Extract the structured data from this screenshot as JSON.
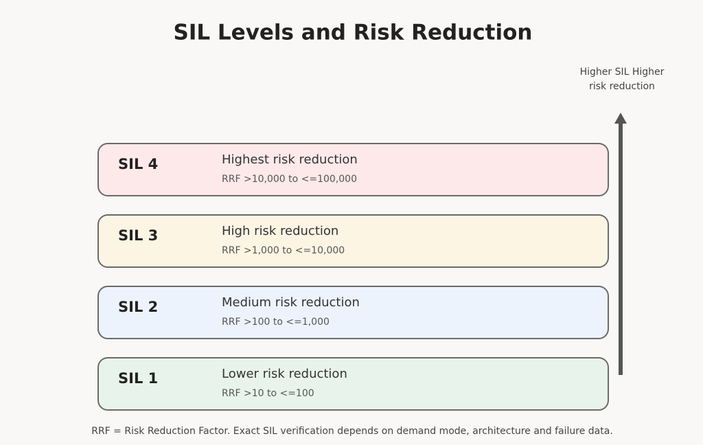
{
  "title": "SIL Levels and Risk Reduction",
  "levels": [
    {
      "label": "SIL 4",
      "description": "Highest risk reduction",
      "range": "RRF >10,000 to <=100,000",
      "color": "#fde9ea"
    },
    {
      "label": "SIL 3",
      "description": "High risk reduction",
      "range": "RRF >1,000 to <=10,000",
      "color": "#fdf5e4"
    },
    {
      "label": "SIL 2",
      "description": "Medium risk reduction",
      "range": "RRF >100 to <=1,000",
      "color": "#edf3fd"
    },
    {
      "label": "SIL 1",
      "description": "Lower risk reduction",
      "range": "RRF >10 to <=100",
      "color": "#e8f4eb"
    }
  ],
  "arrow_label": [
    "Higher SIL Higher",
    "risk reduction"
  ],
  "footnote": "RRF = Risk Reduction Factor. Exact SIL verification depends on demand mode, architecture and failure data."
}
